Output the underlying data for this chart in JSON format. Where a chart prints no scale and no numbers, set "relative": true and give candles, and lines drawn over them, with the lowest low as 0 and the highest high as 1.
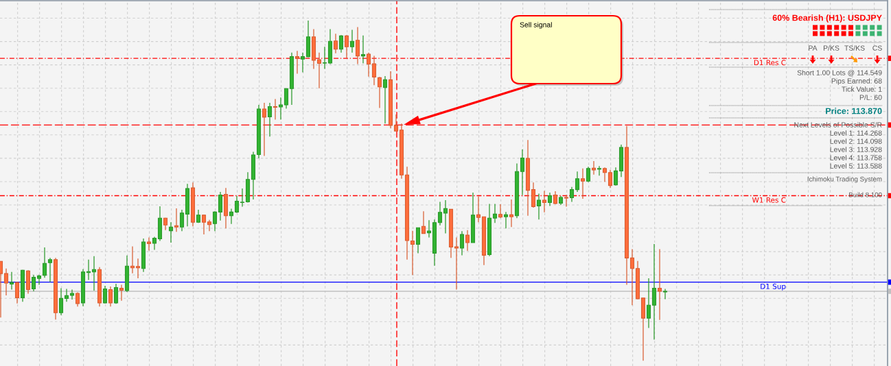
{
  "chart_data": {
    "type": "candlestick",
    "title": "60% Bearish (H1): USDJPY",
    "relative": true,
    "grid": true,
    "categories": [
      null,
      null,
      null,
      null,
      null,
      null,
      null,
      null,
      null,
      null,
      null,
      null,
      null,
      null,
      null,
      null,
      null,
      null,
      null,
      null,
      null,
      null,
      null,
      null,
      null,
      null,
      null,
      null,
      null,
      null,
      null,
      null,
      null,
      null,
      null,
      null,
      null,
      null,
      null,
      null,
      null,
      null,
      null,
      null,
      null,
      null,
      null,
      null,
      null,
      null,
      null,
      null,
      null,
      null,
      null,
      null,
      null,
      null,
      null,
      null,
      null,
      null,
      null,
      null,
      null,
      null,
      null,
      null,
      null,
      null,
      null,
      null,
      null,
      null,
      null,
      null,
      null,
      null,
      null,
      null,
      null,
      null,
      null,
      null,
      null,
      null,
      null,
      null,
      null,
      null,
      null,
      null,
      null,
      null,
      null,
      null,
      null,
      null,
      null,
      null,
      null,
      null,
      null,
      null,
      null,
      null,
      null,
      null,
      null,
      null,
      null,
      null,
      null,
      null,
      null,
      null,
      null,
      null,
      null,
      null,
      null,
      null
    ],
    "ohlc": [
      [
        0.292,
        0.292,
        0.127,
        0.256
      ],
      [
        0.256,
        0.271,
        0.192,
        0.228
      ],
      [
        0.225,
        0.261,
        0.209,
        0.23
      ],
      [
        0.23,
        0.231,
        0.168,
        0.185
      ],
      [
        0.185,
        0.267,
        0.173,
        0.266
      ],
      [
        0.264,
        0.266,
        0.197,
        0.209
      ],
      [
        0.211,
        0.252,
        0.204,
        0.245
      ],
      [
        0.242,
        0.253,
        0.223,
        0.249
      ],
      [
        0.251,
        0.333,
        0.244,
        0.286
      ],
      [
        0.288,
        0.302,
        0.231,
        0.297
      ],
      [
        0.297,
        0.302,
        0.121,
        0.141
      ],
      [
        0.141,
        0.213,
        0.134,
        0.183
      ],
      [
        0.183,
        0.211,
        0.173,
        0.191
      ],
      [
        0.192,
        0.209,
        0.18,
        0.198
      ],
      [
        0.198,
        0.201,
        0.159,
        0.168
      ],
      [
        0.17,
        0.269,
        0.16,
        0.261
      ],
      [
        0.259,
        0.297,
        0.237,
        0.262
      ],
      [
        0.261,
        0.307,
        0.206,
        0.268
      ],
      [
        0.268,
        0.275,
        0.159,
        0.17
      ],
      [
        0.17,
        0.22,
        0.168,
        0.211
      ],
      [
        0.209,
        0.218,
        0.159,
        0.17
      ],
      [
        0.17,
        0.226,
        0.167,
        0.215
      ],
      [
        0.213,
        0.223,
        0.176,
        0.207
      ],
      [
        0.206,
        0.309,
        0.202,
        0.278
      ],
      [
        0.278,
        0.336,
        0.257,
        0.273
      ],
      [
        0.277,
        0.3,
        0.242,
        0.273
      ],
      [
        0.271,
        0.359,
        0.261,
        0.349
      ],
      [
        0.349,
        0.362,
        0.324,
        0.344
      ],
      [
        0.345,
        0.364,
        0.326,
        0.36
      ],
      [
        0.358,
        0.454,
        0.352,
        0.419
      ],
      [
        0.419,
        0.42,
        0.384,
        0.399
      ],
      [
        0.382,
        0.407,
        0.347,
        0.393
      ],
      [
        0.397,
        0.448,
        0.379,
        0.393
      ],
      [
        0.393,
        0.444,
        0.381,
        0.434
      ],
      [
        0.431,
        0.52,
        0.395,
        0.506
      ],
      [
        0.508,
        0.524,
        0.395,
        0.407
      ],
      [
        0.407,
        0.444,
        0.405,
        0.428
      ],
      [
        0.428,
        0.429,
        0.371,
        0.407
      ],
      [
        0.408,
        0.414,
        0.381,
        0.4
      ],
      [
        0.403,
        0.439,
        0.381,
        0.437
      ],
      [
        0.437,
        0.496,
        0.412,
        0.487
      ],
      [
        0.489,
        0.508,
        0.389,
        0.426
      ],
      [
        0.426,
        0.447,
        0.402,
        0.437
      ],
      [
        0.437,
        0.484,
        0.434,
        0.469
      ],
      [
        0.465,
        0.506,
        0.453,
        0.466
      ],
      [
        0.467,
        0.554,
        0.465,
        0.533
      ],
      [
        0.533,
        0.614,
        0.474,
        0.605
      ],
      [
        0.606,
        0.752,
        0.595,
        0.74
      ],
      [
        0.74,
        0.758,
        0.602,
        0.716
      ],
      [
        0.717,
        0.758,
        0.659,
        0.747
      ],
      [
        0.747,
        0.769,
        0.709,
        0.745
      ],
      [
        0.746,
        0.774,
        0.709,
        0.752
      ],
      [
        0.752,
        0.801,
        0.741,
        0.8
      ],
      [
        0.8,
        0.906,
        0.752,
        0.894
      ],
      [
        0.894,
        0.911,
        0.844,
        0.889
      ],
      [
        0.887,
        0.906,
        0.848,
        0.894
      ],
      [
        0.894,
        1,
        0.892,
        0.952
      ],
      [
        0.952,
        0.975,
        0.858,
        0.883
      ],
      [
        0.885,
        0.906,
        0.801,
        0.874
      ],
      [
        0.875,
        0.923,
        0.858,
        0.876
      ],
      [
        0.875,
        0.975,
        0.872,
        0.939
      ],
      [
        0.94,
        0.961,
        0.904,
        0.916
      ],
      [
        0.916,
        0.957,
        0.906,
        0.955
      ],
      [
        0.955,
        0.957,
        0.889,
        0.923
      ],
      [
        0.923,
        0.973,
        0.906,
        0.939
      ],
      [
        0.942,
        0.981,
        0.872,
        0.896
      ],
      [
        0.896,
        0.956,
        0.874,
        0.9
      ],
      [
        0.901,
        0.906,
        0.835,
        0.872
      ],
      [
        0.873,
        0.896,
        0.81,
        0.834
      ],
      [
        0.832,
        0.834,
        0.743,
        0.805
      ],
      [
        0.803,
        0.837,
        0.697,
        0.826
      ],
      [
        0.826,
        0.851,
        0.683,
        0.692
      ],
      [
        0.692,
        0.724,
        0.675,
        0.675
      ],
      [
        0.678,
        0.697,
        0.535,
        0.546
      ],
      [
        0.546,
        0.57,
        0.297,
        0.353
      ],
      [
        0.352,
        0.382,
        0.252,
        0.342
      ],
      [
        0.342,
        0.391,
        0.316,
        0.391
      ],
      [
        0.395,
        0.439,
        0.374,
        0.374
      ],
      [
        0.376,
        0.413,
        0.362,
        0.381
      ],
      [
        0.316,
        0.415,
        0.279,
        0.406
      ],
      [
        0.406,
        0.467,
        0.398,
        0.436
      ],
      [
        0.434,
        0.472,
        0.374,
        0.447
      ],
      [
        0.445,
        0.445,
        0.302,
        0.334
      ],
      [
        0.335,
        0.362,
        0.209,
        0.331
      ],
      [
        0.331,
        0.381,
        0.31,
        0.371
      ],
      [
        0.369,
        0.384,
        0.323,
        0.347
      ],
      [
        0.347,
        0.494,
        0.347,
        0.428
      ],
      [
        0.429,
        0.482,
        0.407,
        0.421
      ],
      [
        0.423,
        0.423,
        0.281,
        0.31
      ],
      [
        0.312,
        0.461,
        0.307,
        0.419
      ],
      [
        0.419,
        0.461,
        0.405,
        0.431
      ],
      [
        0.43,
        0.46,
        0.419,
        0.422
      ],
      [
        0.423,
        0.437,
        0.389,
        0.429
      ],
      [
        0.429,
        0.474,
        0.393,
        0.423
      ],
      [
        0.426,
        0.58,
        0.419,
        0.556
      ],
      [
        0.556,
        0.621,
        0.487,
        0.596
      ],
      [
        0.595,
        0.649,
        0.426,
        0.501
      ],
      [
        0.503,
        0.524,
        0.45,
        0.453
      ],
      [
        0.455,
        0.491,
        0.415,
        0.472
      ],
      [
        0.472,
        0.499,
        0.436,
        0.465
      ],
      [
        0.465,
        0.494,
        0.455,
        0.485
      ],
      [
        0.487,
        0.498,
        0.46,
        0.462
      ],
      [
        0.463,
        0.484,
        0.458,
        0.48
      ],
      [
        0.48,
        0.487,
        0.453,
        0.478
      ],
      [
        0.479,
        0.511,
        0.467,
        0.503
      ],
      [
        0.503,
        0.556,
        0.496,
        0.535
      ],
      [
        0.535,
        0.565,
        0.476,
        0.528
      ],
      [
        0.528,
        0.57,
        0.525,
        0.565
      ],
      [
        0.566,
        0.587,
        0.547,
        0.561
      ],
      [
        0.563,
        0.572,
        0.544,
        0.565
      ],
      [
        0.565,
        0.568,
        0.526,
        0.553
      ],
      [
        0.553,
        0.561,
        0.508,
        0.515
      ],
      [
        0.517,
        0.568,
        0.515,
        0.558
      ],
      [
        0.558,
        0.635,
        0.54,
        0.627
      ],
      [
        0.627,
        0.69,
        0.223,
        0.302
      ],
      [
        0.302,
        0.328,
        0.163,
        0.271
      ],
      [
        0.271,
        0.293,
        0.181,
        0.182
      ],
      [
        0.184,
        0.185,
        0,
        0.125
      ],
      [
        0.125,
        0.242,
        0.096,
        0.163
      ],
      [
        0.163,
        0.343,
        0.062,
        0.213
      ],
      [
        0.213,
        0.328,
        0.12,
        0.204
      ],
      [
        0.202,
        0.211,
        0.181,
        0.204
      ]
    ],
    "colors": [
      "#ff6e3c",
      "#ff6e3c",
      "#32b432",
      "#ff6e3c",
      "#32b432",
      "#ff6e3c",
      "#32b432",
      "#32b432",
      "#32b432",
      "#32b432",
      "#ff6e3c",
      "#32b432",
      "#32b432",
      "#32b432",
      "#ff6e3c",
      "#32b432",
      "#32b432",
      "#32b432",
      "#ff6e3c",
      "#32b432",
      "#ff6e3c",
      "#32b432",
      "#ff6e3c",
      "#32b432",
      "#ff6e3c",
      "#ff6e3c",
      "#32b432",
      "#ff6e3c",
      "#32b432",
      "#32b432",
      "#ff6e3c",
      "#32b432",
      "#ff6e3c",
      "#32b432",
      "#32b432",
      "#ff6e3c",
      "#32b432",
      "#ff6e3c",
      "#ff6e3c",
      "#32b432",
      "#32b432",
      "#ff6e3c",
      "#32b432",
      "#32b432",
      "#32b432",
      "#32b432",
      "#32b432",
      "#32b432",
      "#ff6e3c",
      "#32b432",
      "#ff6e3c",
      "#32b432",
      "#32b432",
      "#32b432",
      "#ff6e3c",
      "#32b432",
      "#32b432",
      "#ff6e3c",
      "#ff6e3c",
      "#32b432",
      "#32b432",
      "#ff6e3c",
      "#32b432",
      "#ff6e3c",
      "#32b432",
      "#ff6e3c",
      "#32b432",
      "#ff6e3c",
      "#ff6e3c",
      "#ff6e3c",
      "#32b432",
      "#ff6e3c",
      "#ff6e3c",
      "#ff6e3c",
      "#ff6e3c",
      "#ff6e3c",
      "#32b432",
      "#ff6e3c",
      "#32b432",
      "#32b432",
      "#32b432",
      "#32b432",
      "#ff6e3c",
      "#ff6e3c",
      "#32b432",
      "#ff6e3c",
      "#32b432",
      "#ff6e3c",
      "#ff6e3c",
      "#32b432",
      "#32b432",
      "#ff6e3c",
      "#32b432",
      "#ff6e3c",
      "#32b432",
      "#32b432",
      "#ff6e3c",
      "#ff6e3c",
      "#32b432",
      "#ff6e3c",
      "#32b432",
      "#ff6e3c",
      "#32b432",
      "#ff6e3c",
      "#32b432",
      "#32b432",
      "#ff6e3c",
      "#32b432",
      "#ff6e3c",
      "#32b432",
      "#ff6e3c",
      "#ff6e3c",
      "#32b432",
      "#32b432",
      "#ff6e3c",
      "#ff6e3c",
      "#ff6e3c",
      "#ff6e3c",
      "#32b432",
      "#32b432",
      "#ff6e3c",
      "#32b432"
    ],
    "ref_lines": [
      {
        "axis": "y",
        "value": 0.889,
        "label": "D1 Res C",
        "color": "#ff0000",
        "line_style": "dashdot"
      },
      {
        "axis": "y",
        "value": 0.693,
        "color": "#ff0000",
        "line_style": "dashed"
      },
      {
        "axis": "y",
        "value": 0.485,
        "label": "W1 Res C",
        "color": "#ff0000",
        "line_style": "dashdot"
      },
      {
        "axis": "y",
        "value": 0.231,
        "label": "D1 Sup",
        "color": "#0000ff",
        "line_style": "solid"
      },
      {
        "axis": "y",
        "value": 0.204,
        "color": "#c0c0c0",
        "line_style": "solid"
      }
    ],
    "annotations": [
      "Sell signal",
      "PA",
      "P/KS",
      "TS/KS",
      "CS",
      "Short 1.00 Lots @ 114.549",
      "Pips Earned: 68",
      "Tick Value: 1",
      "P/L: 60",
      "Price: 113.870",
      "Next Levels of Possible S/R",
      "Level 1: 114.268",
      "Level 2: 114.098",
      "Level 3: 113.928",
      "Level 4: 113.758",
      "Level 5: 113.588",
      "Ichimoku Trading System",
      "Build 8.100"
    ]
  }
}
